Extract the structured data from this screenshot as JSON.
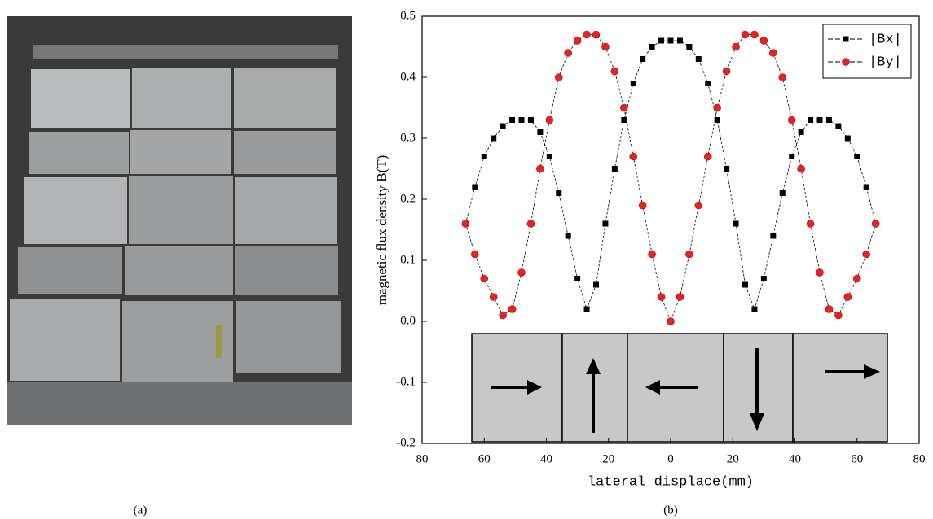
{
  "captions": {
    "a": "(a)",
    "b": "(b)"
  },
  "chart_data": {
    "type": "line",
    "xlabel": "lateral displace(mm)",
    "ylabel": "magnetic flux density B(T)",
    "x": [
      -66,
      -63,
      -60,
      -57,
      -54,
      -51,
      -48,
      -45,
      -42,
      -39,
      -36,
      -33,
      -30,
      -27,
      -24,
      -21,
      -18,
      -15,
      -12,
      -9,
      -6,
      -3,
      0,
      3,
      6,
      9,
      12,
      15,
      18,
      21,
      24,
      27,
      30,
      33,
      36,
      39,
      42,
      45,
      48,
      51,
      54,
      57,
      60,
      63,
      66
    ],
    "series": [
      {
        "name": "|Bx|",
        "color": "#000000",
        "marker": "square",
        "values": [
          0.16,
          0.22,
          0.27,
          0.3,
          0.32,
          0.33,
          0.33,
          0.33,
          0.31,
          0.27,
          0.21,
          0.14,
          0.07,
          0.02,
          0.06,
          0.16,
          0.25,
          0.33,
          0.39,
          0.43,
          0.45,
          0.46,
          0.46,
          0.46,
          0.45,
          0.43,
          0.39,
          0.33,
          0.25,
          0.16,
          0.06,
          0.02,
          0.07,
          0.14,
          0.21,
          0.27,
          0.31,
          0.33,
          0.33,
          0.33,
          0.32,
          0.3,
          0.27,
          0.22,
          0.16
        ]
      },
      {
        "name": "|By|",
        "color": "#e8221c",
        "marker": "circle",
        "values": [
          0.16,
          0.11,
          0.07,
          0.04,
          0.01,
          0.02,
          0.08,
          0.16,
          0.25,
          0.33,
          0.4,
          0.44,
          0.46,
          0.47,
          0.47,
          0.45,
          0.41,
          0.35,
          0.27,
          0.19,
          0.11,
          0.04,
          0.0,
          0.04,
          0.11,
          0.19,
          0.27,
          0.35,
          0.41,
          0.45,
          0.47,
          0.47,
          0.46,
          0.44,
          0.4,
          0.33,
          0.25,
          0.16,
          0.08,
          0.02,
          0.01,
          0.04,
          0.07,
          0.11,
          0.16
        ]
      }
    ],
    "xlim": [
      -80,
      80
    ],
    "xticks": [
      {
        "value": -80,
        "label": "80"
      },
      {
        "value": -60,
        "label": "60"
      },
      {
        "value": -40,
        "label": "40"
      },
      {
        "value": -20,
        "label": "20"
      },
      0,
      20,
      40,
      60,
      80
    ],
    "ylim": [
      -0.2,
      0.5
    ],
    "yticks": [
      -0.2,
      -0.1,
      {
        "value": 0,
        "label": "0.0"
      },
      0.1,
      0.2,
      0.3,
      0.4,
      0.5
    ],
    "legend": "upper right"
  }
}
